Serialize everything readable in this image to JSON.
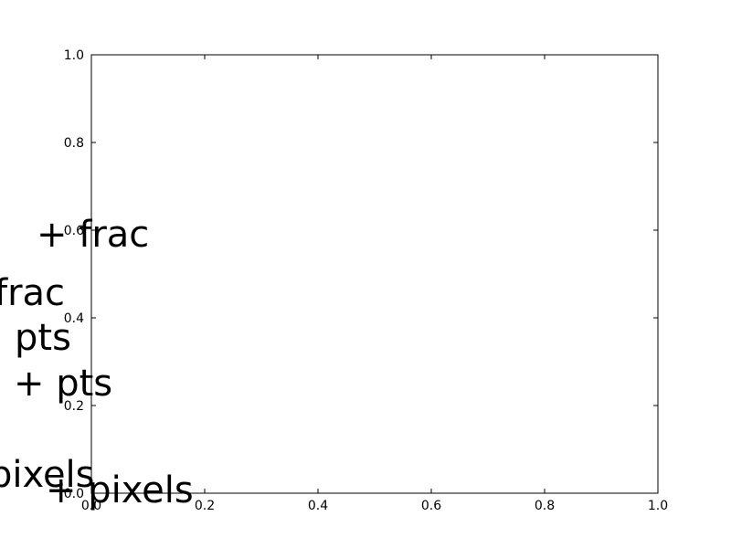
{
  "chart_data": {
    "type": "scatter",
    "title": "",
    "xlabel": "",
    "ylabel": "",
    "xlim": [
      0.0,
      1.0
    ],
    "ylim": [
      0.0,
      1.0
    ],
    "grid": false,
    "series": [],
    "x_ticks": [
      "0.0",
      "0.2",
      "0.4",
      "0.6",
      "0.8",
      "1.0"
    ],
    "y_ticks": [
      "0.0",
      "0.2",
      "0.4",
      "0.6",
      "0.8",
      "1.0"
    ],
    "annotations": [
      {
        "text": "+ frac"
      },
      {
        "text": "frac"
      },
      {
        "text": "pts"
      },
      {
        "text": "+ pts"
      },
      {
        "text": "pixels"
      },
      {
        "text": "+ pixels"
      }
    ]
  }
}
